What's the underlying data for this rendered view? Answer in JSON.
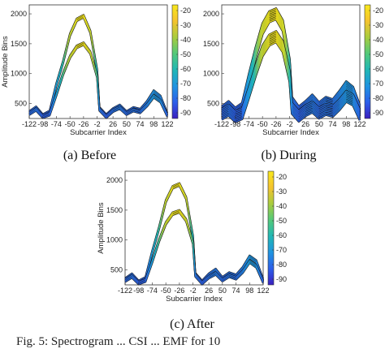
{
  "figure": {
    "caption_partial": "Fig. 5: Spectrogram ... CSI ... EMF for 10"
  },
  "colors": {
    "colormap": [
      "#3a1fbf",
      "#2c5fea",
      "#1f94e0",
      "#21b8b5",
      "#53c97a",
      "#a9cc3e",
      "#f5c32e",
      "#f8e81c"
    ],
    "trace_dark": "#111111"
  },
  "chart_data": [
    {
      "type": "line",
      "caption": "(a) Before",
      "xlabel": "Subcarrier Index",
      "ylabel": "Amplitude Bins",
      "x_ticks": [
        "-122",
        "-98",
        "-74",
        "-50",
        "-26",
        "-2",
        "26",
        "50",
        "74",
        "98",
        "122"
      ],
      "y_ticks": [
        "500",
        "1000",
        "1500",
        "2000"
      ],
      "ylim": [
        250,
        2150
      ],
      "colorbar_ticks": [
        "-20",
        "-30",
        "-40",
        "-50",
        "-60",
        "-70",
        "-80",
        "-90"
      ],
      "spread": 1,
      "series": [
        {
          "x": [
            -122,
            -110,
            -98,
            -86,
            -74,
            -62,
            -50,
            -38,
            -26,
            -14,
            -2,
            2,
            14,
            26,
            38,
            50,
            62,
            74,
            86,
            98,
            110,
            122
          ],
          "values": [
            350,
            430,
            300,
            360,
            820,
            1200,
            1650,
            1900,
            1960,
            1700,
            1050,
            420,
            300,
            400,
            460,
            350,
            420,
            390,
            520,
            700,
            610,
            320
          ]
        },
        {
          "x": [
            -122,
            -110,
            -98,
            -86,
            -74,
            -62,
            -50,
            -38,
            -26,
            -14,
            -2,
            2,
            14,
            26,
            38,
            50,
            62,
            74,
            86,
            98,
            110,
            122
          ],
          "values": [
            330,
            400,
            280,
            320,
            650,
            1000,
            1280,
            1450,
            1500,
            1350,
            950,
            400,
            280,
            380,
            430,
            330,
            390,
            360,
            470,
            620,
            540,
            300
          ]
        }
      ]
    },
    {
      "type": "line",
      "caption": "(b) During",
      "xlabel": "Subcarrier Index",
      "ylabel": "",
      "x_ticks": [
        "-122",
        "-98",
        "-74",
        "-50",
        "-26",
        "-2",
        "26",
        "50",
        "74",
        "98",
        "122"
      ],
      "y_ticks": [
        "500",
        "1000",
        "1500",
        "2000"
      ],
      "ylim": [
        250,
        2150
      ],
      "colorbar_ticks": [
        "-20",
        "-30",
        "-40",
        "-50",
        "-60",
        "-70",
        "-80",
        "-90"
      ],
      "spread": 3,
      "series": [
        {
          "x": [
            -122,
            -110,
            -98,
            -86,
            -74,
            -62,
            -50,
            -38,
            -26,
            -14,
            -2,
            2,
            14,
            26,
            38,
            50,
            62,
            74,
            86,
            98,
            110,
            122
          ],
          "values": [
            360,
            450,
            340,
            420,
            900,
            1350,
            1750,
            1950,
            2000,
            1800,
            1150,
            520,
            360,
            450,
            560,
            430,
            520,
            480,
            620,
            780,
            690,
            380
          ]
        },
        {
          "x": [
            -122,
            -110,
            -98,
            -86,
            -74,
            -62,
            -50,
            -38,
            -26,
            -14,
            -2,
            2,
            14,
            26,
            38,
            50,
            62,
            74,
            86,
            98,
            110,
            122
          ],
          "values": [
            320,
            390,
            280,
            330,
            680,
            1050,
            1380,
            1560,
            1620,
            1450,
            950,
            420,
            290,
            380,
            440,
            340,
            400,
            370,
            480,
            620,
            560,
            310
          ]
        }
      ]
    },
    {
      "type": "line",
      "caption": "(c) After",
      "xlabel": "Subcarrier Index",
      "ylabel": "Amplitude Bins",
      "x_ticks": [
        "-122",
        "-98",
        "-74",
        "-50",
        "-26",
        "-2",
        "26",
        "50",
        "74",
        "98",
        "122"
      ],
      "y_ticks": [
        "500",
        "1000",
        "1500",
        "2000"
      ],
      "ylim": [
        250,
        2150
      ],
      "colorbar_ticks": [
        "-20",
        "-30",
        "-40",
        "-50",
        "-60",
        "-70",
        "-80",
        "-90"
      ],
      "spread": 1,
      "series": [
        {
          "x": [
            -122,
            -110,
            -98,
            -86,
            -74,
            -62,
            -50,
            -38,
            -26,
            -14,
            -2,
            2,
            14,
            26,
            38,
            50,
            62,
            74,
            86,
            98,
            110,
            122
          ],
          "values": [
            340,
            420,
            300,
            360,
            800,
            1200,
            1650,
            1880,
            1930,
            1700,
            1050,
            430,
            300,
            420,
            500,
            360,
            440,
            400,
            530,
            720,
            640,
            330
          ]
        },
        {
          "x": [
            -122,
            -110,
            -98,
            -86,
            -74,
            -62,
            -50,
            -38,
            -26,
            -14,
            -2,
            2,
            14,
            26,
            38,
            50,
            62,
            74,
            86,
            98,
            110,
            122
          ],
          "values": [
            320,
            390,
            280,
            320,
            640,
            990,
            1280,
            1440,
            1480,
            1330,
            950,
            410,
            280,
            380,
            440,
            330,
            400,
            360,
            470,
            640,
            560,
            300
          ]
        }
      ]
    }
  ]
}
